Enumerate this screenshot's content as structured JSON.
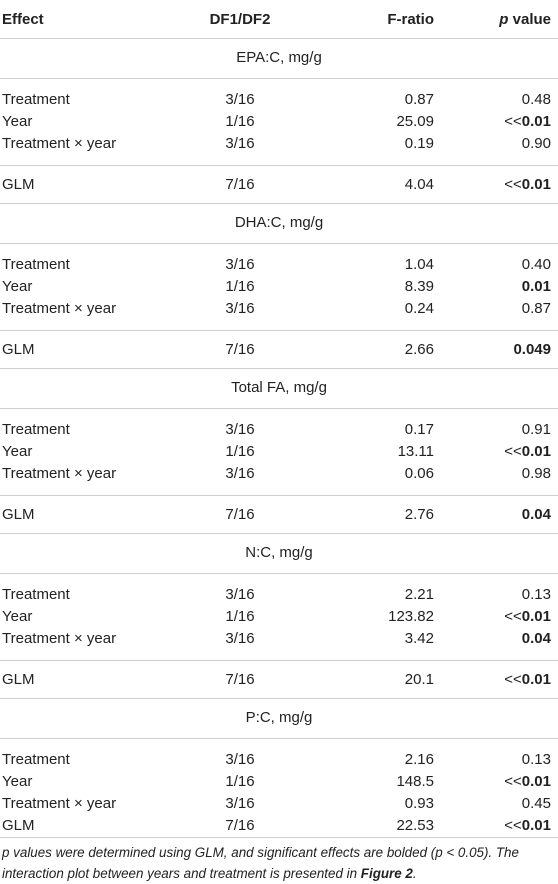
{
  "header": {
    "effect": "Effect",
    "df": "DF1/DF2",
    "f": "F-ratio",
    "p_italic": "p",
    "p_rest": " value"
  },
  "sections": [
    {
      "title": "EPA:C, mg/g",
      "rows": [
        {
          "effect": "Treatment",
          "df": "3/16",
          "f": "0.87",
          "p_prefix": "",
          "p": "0.48",
          "bold": false
        },
        {
          "effect": "Year",
          "df": "1/16",
          "f": "25.09",
          "p_prefix": "<<",
          "p": "0.01",
          "bold": true
        },
        {
          "effect": "Treatment × year",
          "df": "3/16",
          "f": "0.19",
          "p_prefix": "",
          "p": "0.90",
          "bold": false
        }
      ],
      "glm": {
        "effect": "GLM",
        "df": "7/16",
        "f": "4.04",
        "p_prefix": "<<",
        "p": "0.01",
        "bold": true
      }
    },
    {
      "title": "DHA:C, mg/g",
      "rows": [
        {
          "effect": "Treatment",
          "df": "3/16",
          "f": "1.04",
          "p_prefix": "",
          "p": "0.40",
          "bold": false
        },
        {
          "effect": "Year",
          "df": "1/16",
          "f": "8.39",
          "p_prefix": "",
          "p": "0.01",
          "bold": true
        },
        {
          "effect": "Treatment × year",
          "df": "3/16",
          "f": "0.24",
          "p_prefix": "",
          "p": "0.87",
          "bold": false
        }
      ],
      "glm": {
        "effect": "GLM",
        "df": "7/16",
        "f": "2.66",
        "p_prefix": "",
        "p": "0.049",
        "bold": true
      }
    },
    {
      "title": "Total FA, mg/g",
      "rows": [
        {
          "effect": "Treatment",
          "df": "3/16",
          "f": "0.17",
          "p_prefix": "",
          "p": "0.91",
          "bold": false
        },
        {
          "effect": "Year",
          "df": "1/16",
          "f": "13.11",
          "p_prefix": "<<",
          "p": "0.01",
          "bold": true
        },
        {
          "effect": "Treatment × year",
          "df": "3/16",
          "f": "0.06",
          "p_prefix": "",
          "p": "0.98",
          "bold": false
        }
      ],
      "glm": {
        "effect": "GLM",
        "df": "7/16",
        "f": "2.76",
        "p_prefix": "",
        "p": "0.04",
        "bold": true
      }
    },
    {
      "title": "N:C, mg/g",
      "rows": [
        {
          "effect": "Treatment",
          "df": "3/16",
          "f": "2.21",
          "p_prefix": "",
          "p": "0.13",
          "bold": false
        },
        {
          "effect": "Year",
          "df": "1/16",
          "f": "123.82",
          "p_prefix": "<<",
          "p": "0.01",
          "bold": true
        },
        {
          "effect": "Treatment × year",
          "df": "3/16",
          "f": "3.42",
          "p_prefix": "",
          "p": "0.04",
          "bold": true
        }
      ],
      "glm": {
        "effect": "GLM",
        "df": "7/16",
        "f": "20.1",
        "p_prefix": "<<",
        "p": "0.01",
        "bold": true
      }
    },
    {
      "title": "P:C, mg/g",
      "rows": [
        {
          "effect": "Treatment",
          "df": "3/16",
          "f": "2.16",
          "p_prefix": "",
          "p": "0.13",
          "bold": false
        },
        {
          "effect": "Year",
          "df": "1/16",
          "f": "148.5",
          "p_prefix": "<<",
          "p": "0.01",
          "bold": true
        },
        {
          "effect": "Treatment × year",
          "df": "3/16",
          "f": "0.93",
          "p_prefix": "",
          "p": "0.45",
          "bold": false
        },
        {
          "effect": "GLM",
          "df": "7/16",
          "f": "22.53",
          "p_prefix": "<<",
          "p": "0.01",
          "bold": true
        }
      ],
      "glm": null
    }
  ],
  "footnote": {
    "p_italic": "p",
    "text": " values were determined using GLM, and significant effects are bolded (p < 0.05). The interaction plot between years and treatment is presented in ",
    "figure": "Figure 2",
    "end": "."
  }
}
